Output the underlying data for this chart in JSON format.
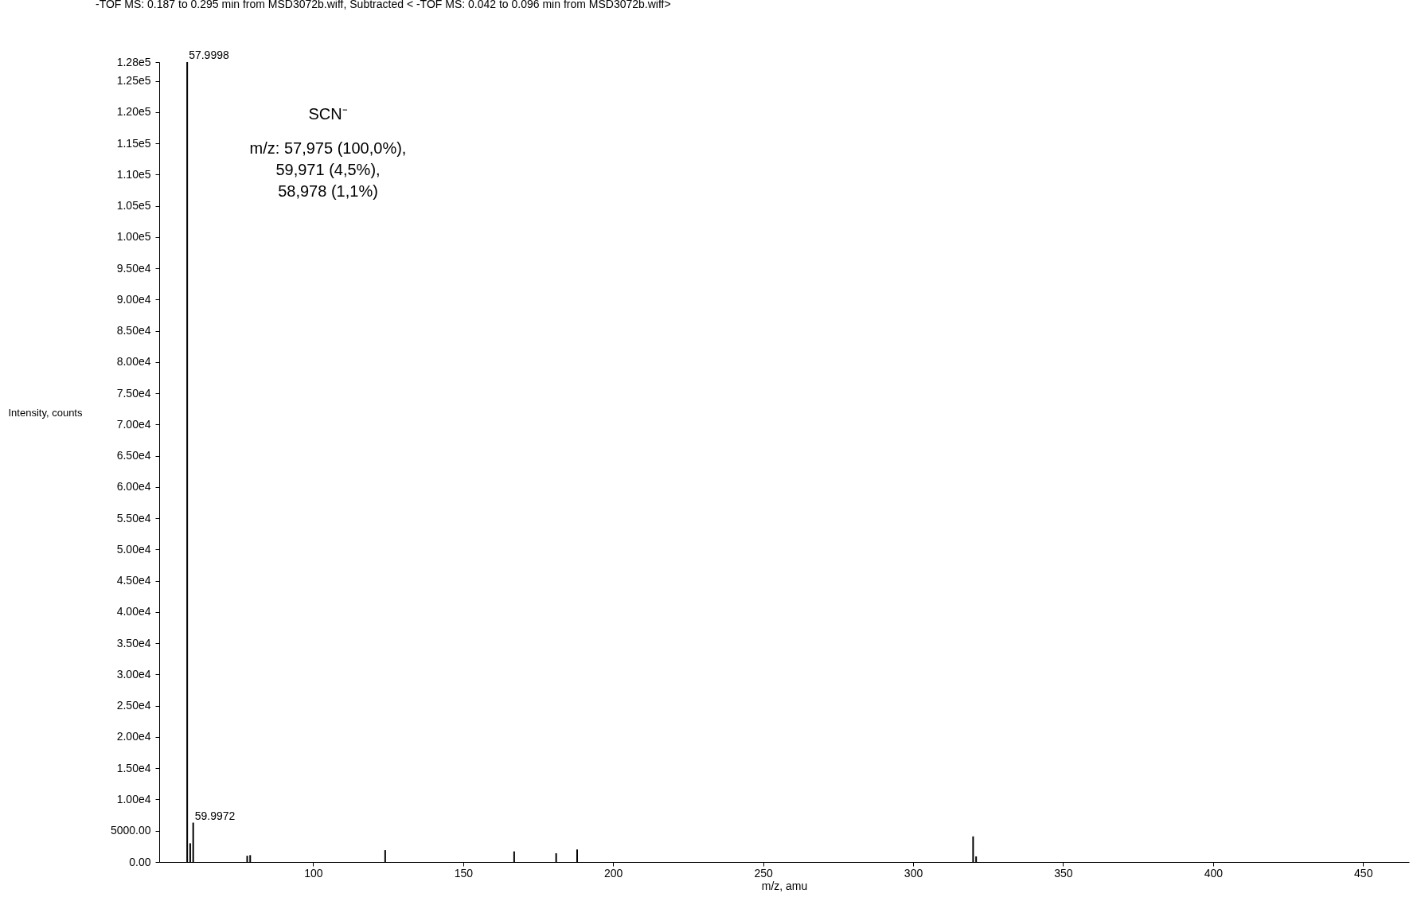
{
  "chart_data": {
    "type": "bar",
    "title": "-TOF MS: 0.187 to 0.295 min from MSD3072b.wiff, Subtracted < -TOF MS: 0.042 to 0.096 min from MSD3072b.wiff>",
    "xlabel": "m/z, amu",
    "ylabel": "Intensity, counts",
    "x": [
      58,
      59,
      60,
      78,
      79,
      124,
      167,
      181,
      188,
      320,
      321
    ],
    "series": [
      {
        "color": "#000000",
        "values": [
          128000,
          3000,
          6300,
          1000,
          1100,
          1900,
          1700,
          1400,
          2000,
          4100,
          900
        ]
      }
    ],
    "xlim": [
      50,
      464
    ],
    "xticks": [
      100,
      150,
      200,
      250,
      300,
      350,
      400,
      450
    ],
    "ylim": [
      0,
      128000
    ],
    "yticks": [
      {
        "value": 0,
        "label": "0.00"
      },
      {
        "value": 5000,
        "label": "5000.00"
      },
      {
        "value": 10000,
        "label": "1.00e4"
      },
      {
        "value": 15000,
        "label": "1.50e4"
      },
      {
        "value": 20000,
        "label": "2.00e4"
      },
      {
        "value": 25000,
        "label": "2.50e4"
      },
      {
        "value": 30000,
        "label": "3.00e4"
      },
      {
        "value": 35000,
        "label": "3.50e4"
      },
      {
        "value": 40000,
        "label": "4.00e4"
      },
      {
        "value": 45000,
        "label": "4.50e4"
      },
      {
        "value": 50000,
        "label": "5.00e4"
      },
      {
        "value": 55000,
        "label": "5.50e4"
      },
      {
        "value": 60000,
        "label": "6.00e4"
      },
      {
        "value": 65000,
        "label": "6.50e4"
      },
      {
        "value": 70000,
        "label": "7.00e4"
      },
      {
        "value": 75000,
        "label": "7.50e4"
      },
      {
        "value": 80000,
        "label": "8.00e4"
      },
      {
        "value": 85000,
        "label": "8.50e4"
      },
      {
        "value": 90000,
        "label": "9.00e4"
      },
      {
        "value": 95000,
        "label": "9.50e4"
      },
      {
        "value": 100000,
        "label": "1.00e5"
      },
      {
        "value": 105000,
        "label": "1.05e5"
      },
      {
        "value": 110000,
        "label": "1.10e5"
      },
      {
        "value": 115000,
        "label": "1.15e5"
      },
      {
        "value": 120000,
        "label": "1.20e5"
      },
      {
        "value": 125000,
        "label": "1.25e5"
      },
      {
        "value": 128000,
        "label": "1.28e5"
      }
    ],
    "annotations": [
      "SCN⁻",
      "m/z: 57,975 (100,0%),",
      "59,971 (4,5%),",
      "58,978 (1,1%)",
      {
        "text": "57.9998",
        "x": 58,
        "y": 128000
      },
      {
        "text": "59.9972",
        "x": 60,
        "y": 6300
      }
    ],
    "grid": false
  }
}
